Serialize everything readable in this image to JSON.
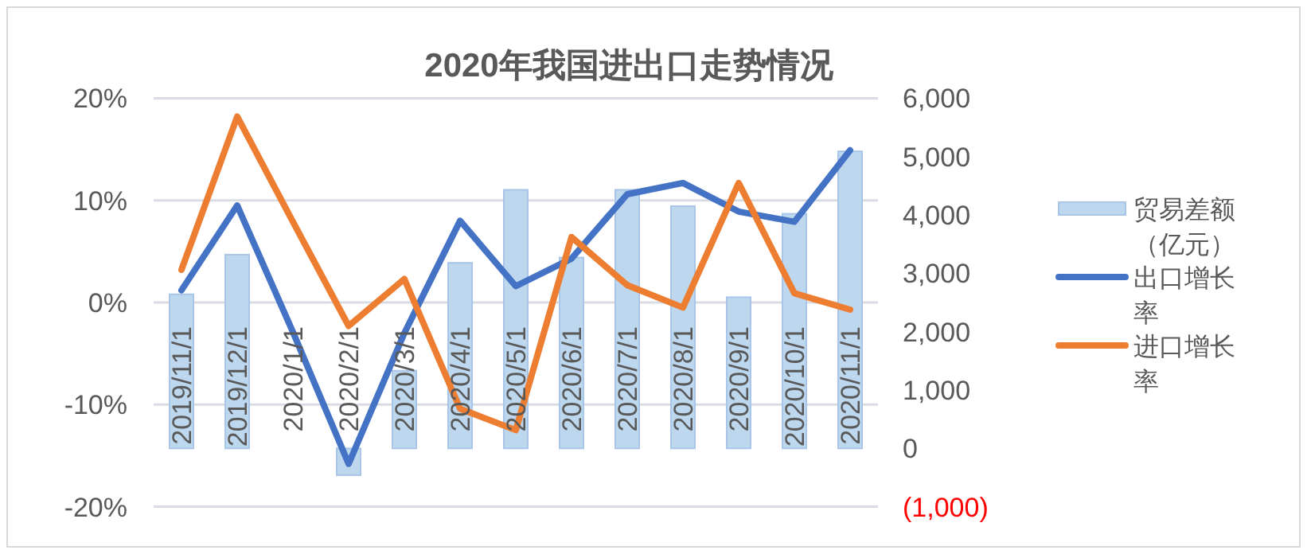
{
  "chart_data": {
    "type": "bar",
    "title": "2020年我国进出口走势情况",
    "categories": [
      "2019/11/1",
      "2019/12/1",
      "2020/1/1",
      "2020/2/1",
      "2020/3/1",
      "2020/4/1",
      "2020/5/1",
      "2020/6/1",
      "2020/7/1",
      "2020/8/1",
      "2020/9/1",
      "2020/10/1",
      "2020/11/1"
    ],
    "series": [
      {
        "name": "贸易差额（亿元）",
        "axis": "y2",
        "color": "#bdd7ee",
        "values": [
          2640,
          3320,
          null,
          -460,
          1330,
          3180,
          4430,
          3270,
          4430,
          4150,
          2590,
          4020,
          5090
        ]
      },
      {
        "name": "出口增长率",
        "type": "line",
        "color": "#4472c4",
        "values": [
          1.2,
          9.5,
          -2.9,
          -15.8,
          -3.0,
          8.0,
          1.6,
          4.3,
          10.6,
          11.7,
          8.9,
          7.9,
          14.9
        ]
      },
      {
        "name": "进口增长率",
        "type": "line",
        "color": "#ed7d31",
        "values": [
          3.2,
          18.2,
          7.9,
          -2.3,
          2.3,
          -10.4,
          -12.5,
          6.4,
          1.7,
          -0.5,
          11.7,
          0.9,
          -0.7
        ]
      }
    ],
    "ylim": [
      -20,
      20
    ],
    "yticks": [
      {
        "value": -20,
        "label": "-20%"
      },
      {
        "value": -10,
        "label": "-10%"
      },
      {
        "value": 0,
        "label": "0%"
      },
      {
        "value": 10,
        "label": "10%"
      },
      {
        "value": 20,
        "label": "20%"
      }
    ],
    "y2lim": [
      -1000,
      6000
    ],
    "y2ticks": [
      {
        "value": -1000,
        "label": "(1,000)"
      },
      {
        "value": 0,
        "label": "0"
      },
      {
        "value": 1000,
        "label": "1,000"
      },
      {
        "value": 2000,
        "label": "2,000"
      },
      {
        "value": 3000,
        "label": "3,000"
      },
      {
        "value": 4000,
        "label": "4,000"
      },
      {
        "value": 5000,
        "label": "5,000"
      },
      {
        "value": 6000,
        "label": "6,000"
      }
    ],
    "grid": "y",
    "legend": "right",
    "marker": "none",
    "line_style": "solid"
  }
}
